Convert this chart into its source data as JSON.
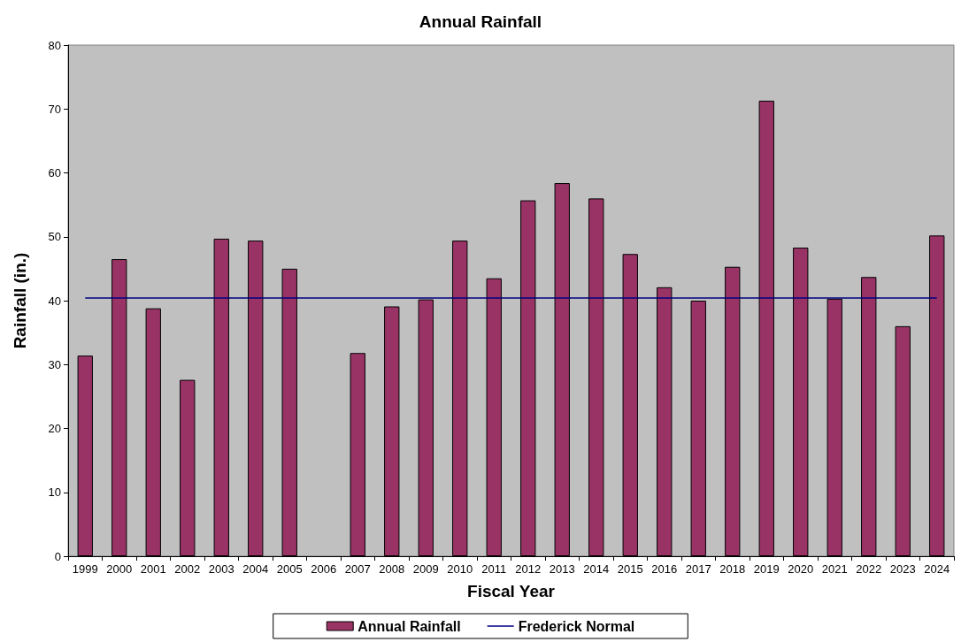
{
  "chart_data": {
    "type": "bar",
    "title": "Annual Rainfall",
    "xlabel": "Fiscal Year",
    "ylabel": "Rainfall (in.)",
    "categories": [
      "1999",
      "2000",
      "2001",
      "2002",
      "2003",
      "2004",
      "2005",
      "2006",
      "2007",
      "2008",
      "2009",
      "2010",
      "2011",
      "2012",
      "2013",
      "2014",
      "2015",
      "2016",
      "2017",
      "2018",
      "2019",
      "2020",
      "2021",
      "2022",
      "2023",
      "2024"
    ],
    "series": [
      {
        "name": "Annual Rainfall",
        "color": "#993366",
        "values": [
          31.4,
          46.5,
          38.8,
          27.6,
          49.7,
          49.4,
          45.0,
          null,
          31.8,
          39.1,
          40.2,
          49.4,
          43.5,
          55.7,
          58.4,
          56.0,
          47.3,
          42.1,
          40.0,
          45.3,
          71.3,
          48.3,
          40.3,
          43.7,
          36.0,
          50.2
        ]
      }
    ],
    "ref_lines": [
      {
        "axis": "y",
        "value": 40.4,
        "label": "Frederick Normal",
        "color": "#000080",
        "line_style": "solid"
      }
    ],
    "ylim": [
      0,
      80
    ],
    "yticks": [
      0,
      10,
      20,
      30,
      40,
      50,
      60,
      70,
      80
    ],
    "grid": false,
    "legend": "bottom"
  }
}
